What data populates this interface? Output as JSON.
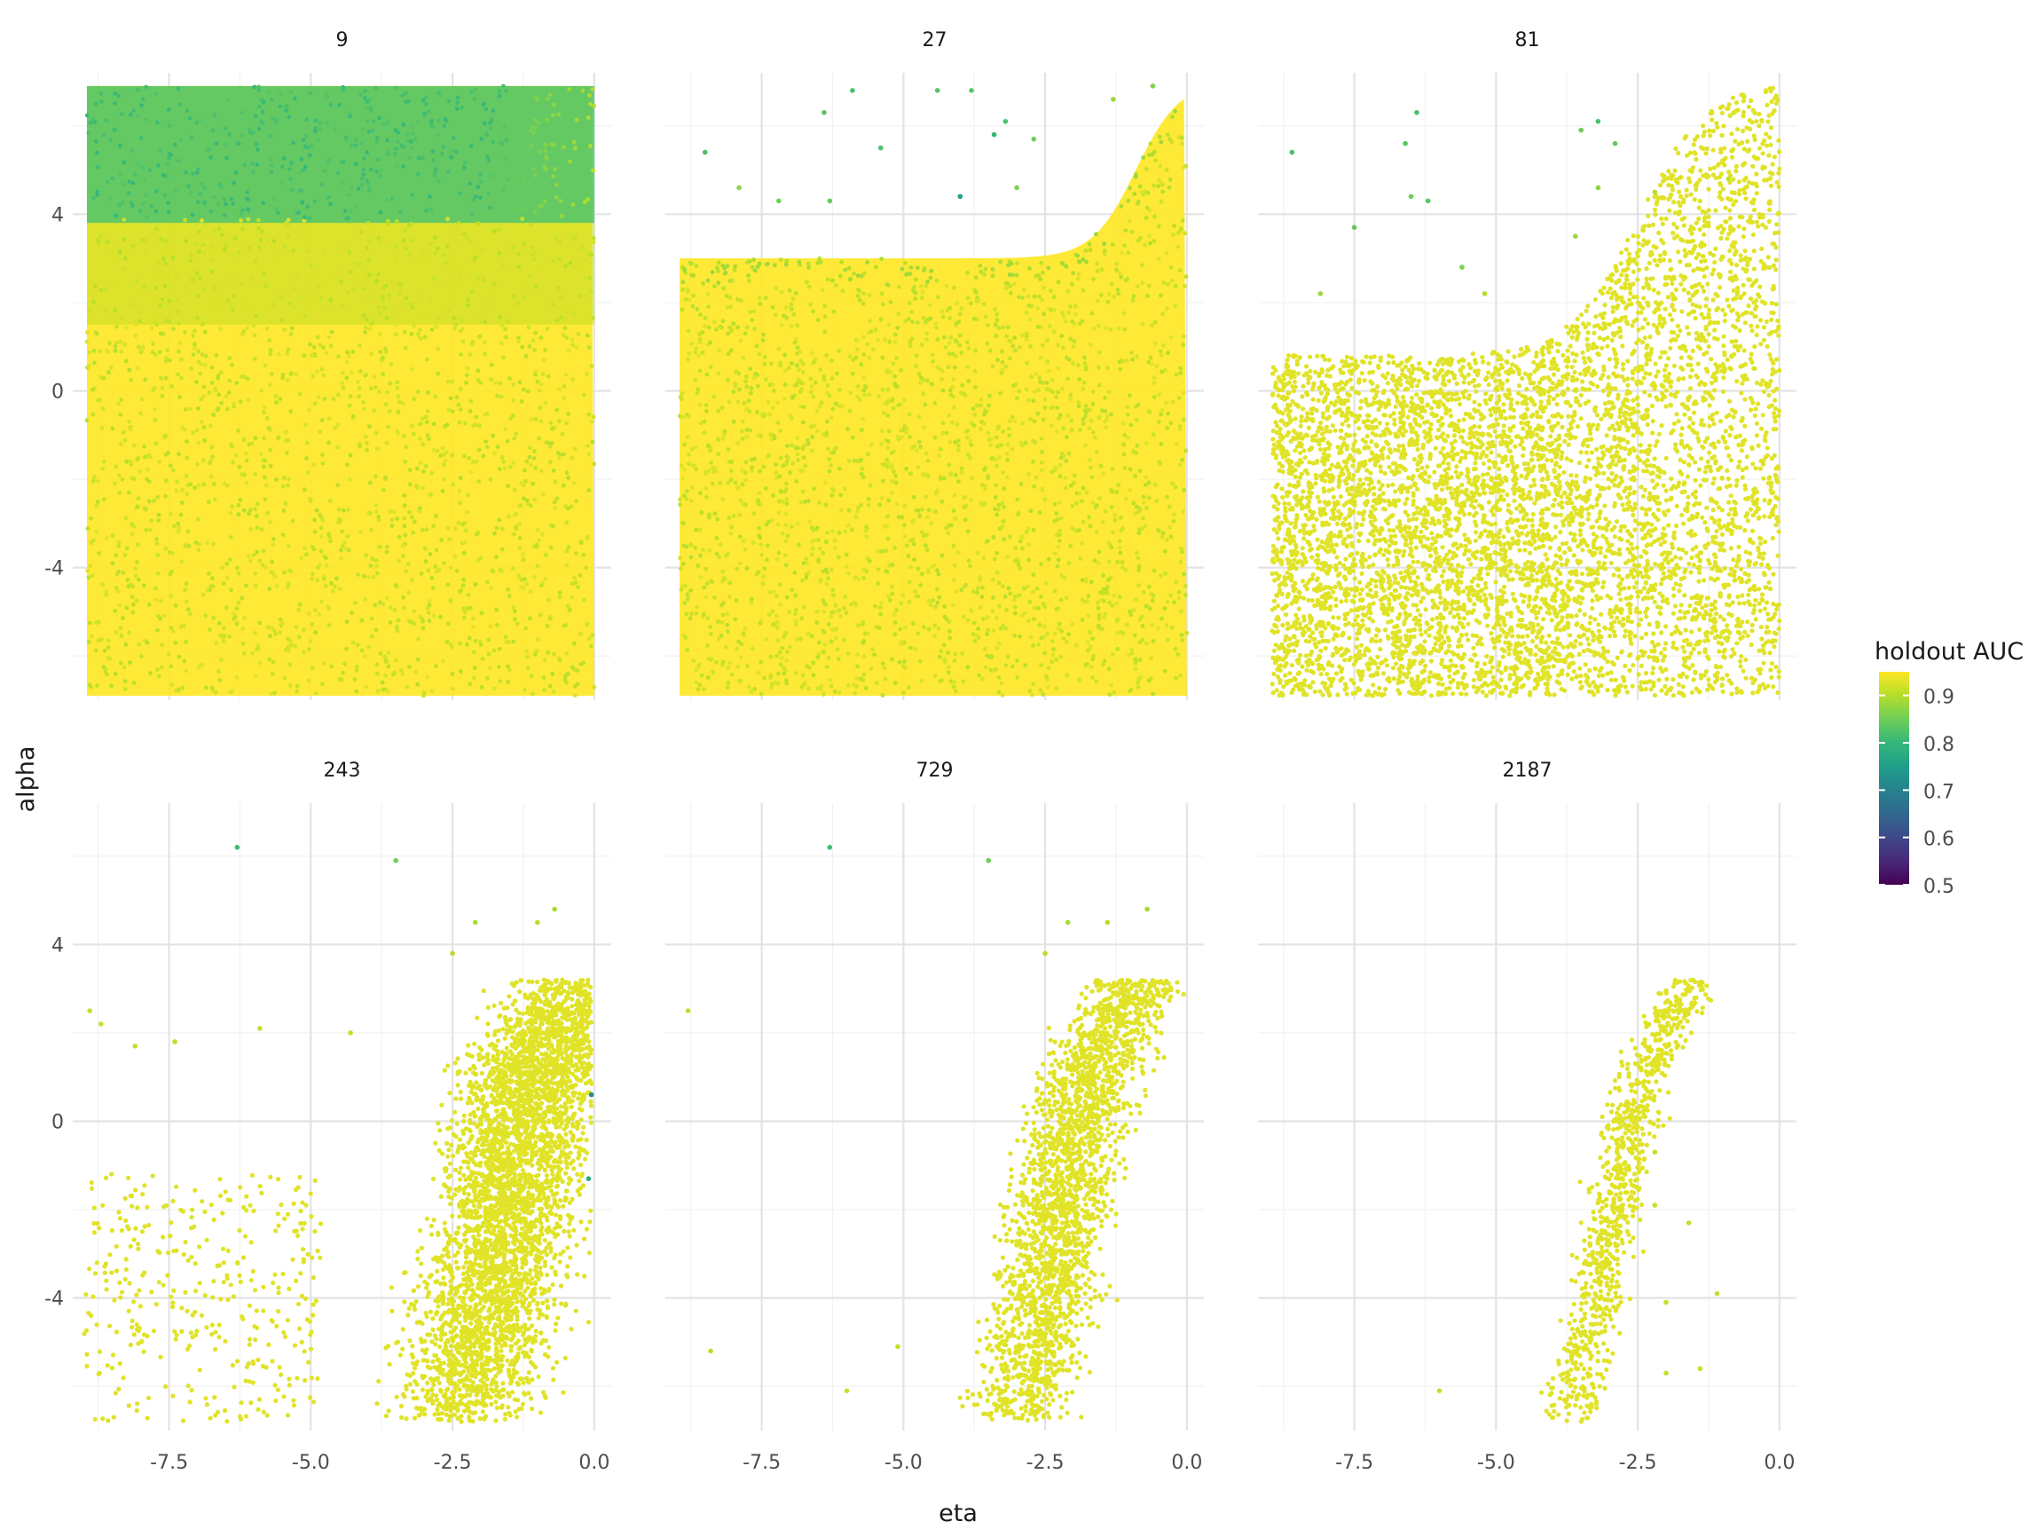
{
  "chart_data": {
    "type": "scatter",
    "facet_variable": "",
    "facets": [
      {
        "label": "9",
        "row": 0,
        "col": 0,
        "style": "dense",
        "ceiling": 7,
        "knee": -0.9,
        "steep": 2.6
      },
      {
        "label": "27",
        "row": 0,
        "col": 1,
        "style": "dense",
        "ceiling": 3.0,
        "knee": -0.9,
        "steep": 2.6
      },
      {
        "label": "81",
        "row": 0,
        "col": 2,
        "style": "sparse",
        "ceiling": 0.8,
        "knee": -2.5,
        "steep": 1.7
      },
      {
        "label": "243",
        "row": 1,
        "col": 0,
        "style": "cloud",
        "center": -2.3,
        "spread": 1.2
      },
      {
        "label": "729",
        "row": 1,
        "col": 1,
        "style": "cloud",
        "center": -3.0,
        "spread": 0.85
      },
      {
        "label": "2187",
        "row": 1,
        "col": 2,
        "style": "cloud",
        "center": -3.7,
        "spread": 0.45
      }
    ],
    "outliers": {
      "27": [
        [
          -8.5,
          5.4,
          0.82
        ],
        [
          -7.9,
          4.6,
          0.87
        ],
        [
          -7.2,
          4.3,
          0.85
        ],
        [
          -6.4,
          6.3,
          0.83
        ],
        [
          -6.3,
          4.3,
          0.84
        ],
        [
          -5.9,
          6.8,
          0.82
        ],
        [
          -5.4,
          5.5,
          0.82
        ],
        [
          -4.4,
          6.8,
          0.83
        ],
        [
          -4.0,
          4.4,
          0.75
        ],
        [
          -3.8,
          6.8,
          0.83
        ],
        [
          -3.4,
          5.8,
          0.8
        ],
        [
          -3.2,
          6.1,
          0.82
        ],
        [
          -3.0,
          4.6,
          0.86
        ],
        [
          -2.7,
          5.7,
          0.85
        ],
        [
          -1.3,
          6.6,
          0.88
        ],
        [
          -0.6,
          6.9,
          0.86
        ]
      ],
      "81": [
        [
          -8.6,
          5.4,
          0.82
        ],
        [
          -8.1,
          2.2,
          0.88
        ],
        [
          -7.5,
          3.7,
          0.84
        ],
        [
          -6.6,
          5.6,
          0.83
        ],
        [
          -6.4,
          6.3,
          0.82
        ],
        [
          -6.2,
          4.3,
          0.83
        ],
        [
          -6.5,
          4.4,
          0.85
        ],
        [
          -5.6,
          2.8,
          0.86
        ],
        [
          -5.2,
          2.2,
          0.9
        ],
        [
          -3.6,
          3.5,
          0.88
        ],
        [
          -3.5,
          5.9,
          0.85
        ],
        [
          -3.2,
          6.1,
          0.82
        ],
        [
          -2.9,
          5.6,
          0.84
        ],
        [
          -3.2,
          4.6,
          0.87
        ],
        [
          -2.2,
          4.5,
          0.9
        ],
        [
          -0.9,
          4.8,
          0.91
        ]
      ],
      "243": [
        [
          -6.3,
          6.2,
          0.81
        ],
        [
          -3.5,
          5.9,
          0.85
        ],
        [
          -2.1,
          4.5,
          0.89
        ],
        [
          -1.0,
          4.5,
          0.9
        ],
        [
          -0.7,
          4.8,
          0.89
        ],
        [
          -8.9,
          2.5,
          0.91
        ],
        [
          -8.7,
          2.2,
          0.91
        ],
        [
          -8.1,
          1.7,
          0.91
        ],
        [
          -7.4,
          1.8,
          0.9
        ],
        [
          -5.9,
          2.1,
          0.91
        ],
        [
          -4.3,
          2.0,
          0.91
        ],
        [
          -2.5,
          3.8,
          0.9
        ],
        [
          -0.05,
          0.6,
          0.72
        ],
        [
          -0.1,
          -1.3,
          0.78
        ]
      ],
      "729": [
        [
          -8.8,
          2.5,
          0.91
        ],
        [
          -8.4,
          -5.2,
          0.9
        ],
        [
          -6.3,
          6.2,
          0.81
        ],
        [
          -3.5,
          5.9,
          0.85
        ],
        [
          -2.5,
          3.8,
          0.9
        ],
        [
          -2.1,
          4.5,
          0.89
        ],
        [
          -1.4,
          4.5,
          0.9
        ],
        [
          -0.7,
          4.8,
          0.89
        ],
        [
          -6.0,
          -6.1,
          0.91
        ],
        [
          -5.1,
          -5.1,
          0.91
        ]
      ],
      "2187": [
        [
          -6.0,
          -6.1,
          0.91
        ],
        [
          -1.1,
          -3.9,
          0.91
        ],
        [
          -1.4,
          -5.6,
          0.91
        ],
        [
          -2.0,
          -4.1,
          0.91
        ],
        [
          -1.6,
          -2.3,
          0.91
        ],
        [
          -2.2,
          -0.7,
          0.91
        ],
        [
          -2.2,
          -1.9,
          0.91
        ],
        [
          -2.0,
          -5.7,
          0.91
        ]
      ]
    },
    "x": {
      "label": "eta",
      "range": [
        -9.2,
        0.3
      ],
      "ticks": [
        -7.5,
        -5.0,
        -2.5,
        0.0
      ],
      "tick_labels": [
        "-7.5",
        "-5.0",
        "-2.5",
        "0.0"
      ]
    },
    "y": {
      "label": "alpha",
      "range": [
        -7.0,
        7.2
      ],
      "ticks": [
        -4,
        0,
        4
      ],
      "tick_labels": [
        "-4",
        "0",
        "4"
      ]
    },
    "color": {
      "title": "holdout AUC",
      "scale": "viridis",
      "range": [
        0.5,
        0.95
      ],
      "ticks": [
        0.5,
        0.6,
        0.7,
        0.8,
        0.9
      ],
      "tick_labels": [
        "0.5",
        "0.6",
        "0.7",
        "0.8",
        "0.9"
      ],
      "stops": [
        "#440154",
        "#482878",
        "#3e4989",
        "#31688e",
        "#26828e",
        "#1f9e89",
        "#35b779",
        "#6ece58",
        "#b5de2b",
        "#fde725"
      ]
    },
    "grid": true,
    "legend_position": "right"
  }
}
